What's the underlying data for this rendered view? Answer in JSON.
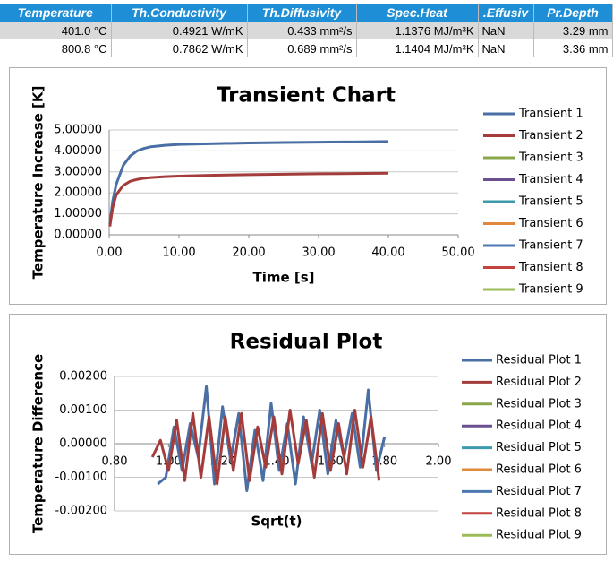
{
  "table": {
    "header": [
      "Temperature",
      "Th.Conductivity",
      "Th.Diffusivity",
      "Spec.Heat",
      ".Effusiv",
      "Pr.Depth"
    ],
    "rows": [
      [
        "401.0 °C",
        "0.4921 W/mK",
        "0.433 mm²/s",
        "1.1376 MJ/m³K",
        "NaN",
        "3.29 mm"
      ],
      [
        "800.8 °C",
        "0.7862 W/mK",
        "0.689 mm²/s",
        "1.1404 MJ/m³K",
        "NaN",
        "3.36 mm"
      ]
    ]
  },
  "chart_data": [
    {
      "type": "line",
      "title": "Transient Chart",
      "x_label": "Time [s]",
      "y_label": "Temperature Increase [K]",
      "xlim": [
        0,
        50
      ],
      "xticks": [
        {
          "value": 0,
          "label": "0.00"
        },
        {
          "value": 10,
          "label": "10.00"
        },
        {
          "value": 20,
          "label": "20.00"
        },
        {
          "value": 30,
          "label": "30.00"
        },
        {
          "value": 40,
          "label": "40.00"
        },
        {
          "value": 50,
          "label": "50.00"
        }
      ],
      "ylim": [
        0,
        5
      ],
      "yticks": [
        {
          "value": 0,
          "label": "0.00000"
        },
        {
          "value": 1,
          "label": "1.00000"
        },
        {
          "value": 2,
          "label": "2.00000"
        },
        {
          "value": 3,
          "label": "3.00000"
        },
        {
          "value": 4,
          "label": "4.00000"
        },
        {
          "value": 5,
          "label": "5.00000"
        }
      ],
      "grid": true,
      "legend": "right",
      "series": [
        {
          "name": "Transient 1",
          "color": "#4a6fa5",
          "x": [
            0.1,
            0.5,
            1,
            2,
            3,
            4,
            5,
            6,
            8,
            10,
            15,
            20,
            25,
            30,
            35,
            40
          ],
          "values": [
            0.5,
            1.6,
            2.4,
            3.3,
            3.75,
            4.0,
            4.12,
            4.2,
            4.27,
            4.31,
            4.35,
            4.38,
            4.4,
            4.42,
            4.43,
            4.45
          ]
        },
        {
          "name": "Transient 2",
          "color": "#a33c3a",
          "x": [
            0.1,
            0.5,
            1,
            2,
            3,
            4,
            5,
            6,
            8,
            10,
            15,
            20,
            25,
            30,
            35,
            40
          ],
          "values": [
            0.4,
            1.3,
            1.9,
            2.35,
            2.55,
            2.64,
            2.7,
            2.73,
            2.77,
            2.8,
            2.84,
            2.87,
            2.89,
            2.91,
            2.92,
            2.94
          ]
        },
        {
          "name": "Transient 3",
          "color": "#8aa64a",
          "x": [],
          "values": []
        },
        {
          "name": "Transient 4",
          "color": "#6c5190",
          "x": [],
          "values": []
        },
        {
          "name": "Transient 5",
          "color": "#3d9aab",
          "x": [],
          "values": []
        },
        {
          "name": "Transient 6",
          "color": "#e0893c",
          "x": [],
          "values": []
        },
        {
          "name": "Transient 7",
          "color": "#4d79b0",
          "x": [],
          "values": []
        },
        {
          "name": "Transient 8",
          "color": "#c2433f",
          "x": [],
          "values": []
        },
        {
          "name": "Transient 9",
          "color": "#9bbb59",
          "x": [],
          "values": []
        }
      ]
    },
    {
      "type": "line",
      "title": "Residual Plot",
      "x_label": "Sqrt(t)",
      "y_label": "Temperature Difference",
      "xlim": [
        0.8,
        2.0
      ],
      "xticks": [
        {
          "value": 0.8,
          "label": "0.80"
        },
        {
          "value": 1.0,
          "label": "1.00"
        },
        {
          "value": 1.2,
          "label": "1.20"
        },
        {
          "value": 1.4,
          "label": "1.40"
        },
        {
          "value": 1.6,
          "label": "1.60"
        },
        {
          "value": 1.8,
          "label": "1.80"
        },
        {
          "value": 2.0,
          "label": "2.00"
        }
      ],
      "ylim": [
        -0.002,
        0.002
      ],
      "yticks": [
        {
          "value": -0.002,
          "label": "-0.00200"
        },
        {
          "value": -0.001,
          "label": "-0.00100"
        },
        {
          "value": 0,
          "label": "0.00000"
        },
        {
          "value": 0.001,
          "label": "0.00100"
        },
        {
          "value": 0.002,
          "label": "0.00200"
        }
      ],
      "grid": true,
      "legend": "right",
      "series": [
        {
          "name": "Residual Plot 1",
          "color": "#4a6fa5",
          "x": [
            0.96,
            0.99,
            1.02,
            1.05,
            1.08,
            1.11,
            1.14,
            1.17,
            1.2,
            1.23,
            1.26,
            1.29,
            1.32,
            1.35,
            1.38,
            1.41,
            1.44,
            1.47,
            1.5,
            1.53,
            1.56,
            1.59,
            1.62,
            1.65,
            1.68,
            1.71,
            1.74,
            1.77,
            1.8
          ],
          "values": [
            -0.0012,
            -0.001,
            0.0005,
            -0.0008,
            0.0006,
            -0.0004,
            0.0017,
            -0.0012,
            0.0011,
            -0.0005,
            0.0009,
            -0.0014,
            0.0004,
            -0.0011,
            0.0012,
            -0.0008,
            0.0006,
            -0.0012,
            0.0008,
            -0.0006,
            0.001,
            -0.0009,
            0.0007,
            -0.0004,
            0.0009,
            -0.0007,
            0.0016,
            -0.0008,
            0.0002
          ]
        },
        {
          "name": "Residual Plot 2",
          "color": "#a33c3a",
          "x": [
            0.94,
            0.97,
            1.0,
            1.03,
            1.06,
            1.09,
            1.12,
            1.15,
            1.18,
            1.21,
            1.24,
            1.27,
            1.3,
            1.33,
            1.36,
            1.39,
            1.42,
            1.45,
            1.48,
            1.51,
            1.54,
            1.57,
            1.6,
            1.63,
            1.66,
            1.69,
            1.72,
            1.75,
            1.78
          ],
          "values": [
            -0.0004,
            0.0001,
            -0.0008,
            0.0007,
            -0.0011,
            0.0009,
            -0.001,
            0.0008,
            -0.0012,
            0.0008,
            -0.0008,
            0.0009,
            -0.0011,
            0.0005,
            -0.0007,
            0.0008,
            -0.0009,
            0.001,
            -0.0006,
            0.0007,
            -0.001,
            0.0009,
            -0.0008,
            0.0006,
            -0.0009,
            0.001,
            -0.0007,
            0.0008,
            -0.0011
          ]
        },
        {
          "name": "Residual Plot 3",
          "color": "#8aa64a",
          "x": [],
          "values": []
        },
        {
          "name": "Residual Plot 4",
          "color": "#6c5190",
          "x": [],
          "values": []
        },
        {
          "name": "Residual Plot 5",
          "color": "#3d9aab",
          "x": [],
          "values": []
        },
        {
          "name": "Residual Plot 6",
          "color": "#e0893c",
          "x": [],
          "values": []
        },
        {
          "name": "Residual Plot 7",
          "color": "#4d79b0",
          "x": [],
          "values": []
        },
        {
          "name": "Residual Plot 8",
          "color": "#c2433f",
          "x": [],
          "values": []
        },
        {
          "name": "Residual Plot 9",
          "color": "#9bbb59",
          "x": [],
          "values": []
        }
      ]
    }
  ]
}
